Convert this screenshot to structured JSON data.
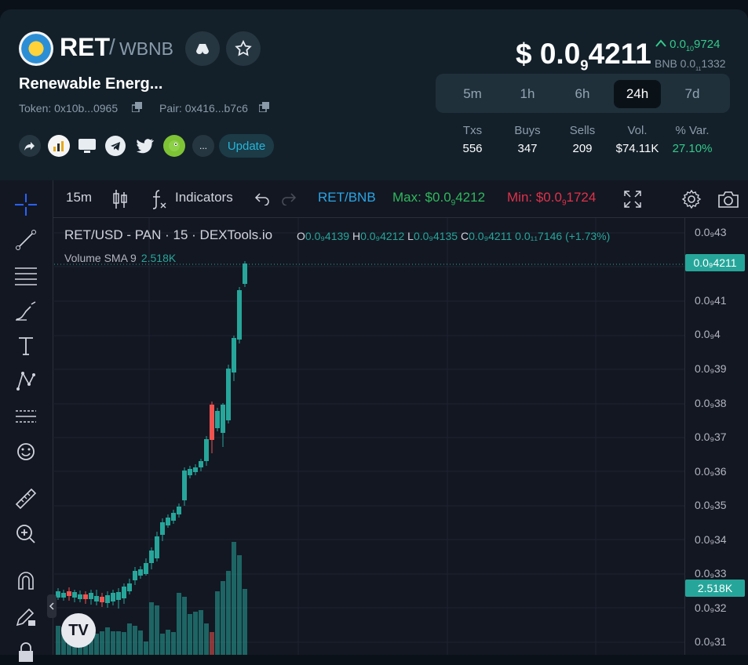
{
  "header": {
    "base": "RET",
    "sep": "/",
    "quote": "WBNB",
    "token_name": "Renewable Energ...",
    "token_label": "Token:",
    "token_addr": "0x10b...0965",
    "pair_label": "Pair:",
    "pair_addr": "0x416...b7c6",
    "update": "Update",
    "more": "..."
  },
  "price": {
    "main_prefix": "$ 0.0",
    "main_sub": "9",
    "main_rest": "4211",
    "change_arrow": "^",
    "change_prefix": "0.0",
    "change_sub": "10",
    "change_rest": "9724",
    "bnb_prefix": "BNB 0.0",
    "bnb_sub": "11",
    "bnb_rest": "1332"
  },
  "timeframes": [
    {
      "label": "5m"
    },
    {
      "label": "1h"
    },
    {
      "label": "6h"
    },
    {
      "label": "24h",
      "active": true
    },
    {
      "label": "7d"
    }
  ],
  "stats": [
    {
      "label": "Txs",
      "value": "556"
    },
    {
      "label": "Buys",
      "value": "347"
    },
    {
      "label": "Sells",
      "value": "209"
    },
    {
      "label": "Vol.",
      "value": "$74.11K"
    },
    {
      "label": "% Var.",
      "value": "27.10%"
    }
  ],
  "toolbar": {
    "interval": "15m",
    "indicators": "Indicators",
    "pair": "RET/BNB",
    "max_label": "Max: $0.0",
    "max_sub": "9",
    "max_rest": "4212",
    "min_label": "Min: $0.0",
    "min_sub": "9",
    "min_rest": "1724"
  },
  "legend": {
    "title": "RET/USD - PAN · 15 · DEXTools.io",
    "o": "O",
    "o_val": "0.0₉4139",
    "h": "H",
    "h_val": "0.0₉4212",
    "l": "L",
    "l_val": "0.0₉4135",
    "c": "C",
    "c_val": "0.0₉4211",
    "chg": "0.0₁₁7146 (+1.73%)",
    "vol_label": "Volume SMA 9",
    "vol_val": "2.518K"
  },
  "axis": {
    "labels": [
      "0.0₉43",
      "0.0₉41",
      "0.0₉4",
      "0.0₉39",
      "0.0₉38",
      "0.0₉37",
      "0.0₉36",
      "0.0₉35",
      "0.0₉34",
      "0.0₉33",
      "0.0₉32",
      "0.0₉31"
    ],
    "price_tag": "0.0₉4211",
    "vol_tag": "2.518K"
  },
  "tv_logo": "TV",
  "colors": {
    "up": "#26a69a",
    "down": "#ef5350",
    "accent": "#34c98a"
  }
}
